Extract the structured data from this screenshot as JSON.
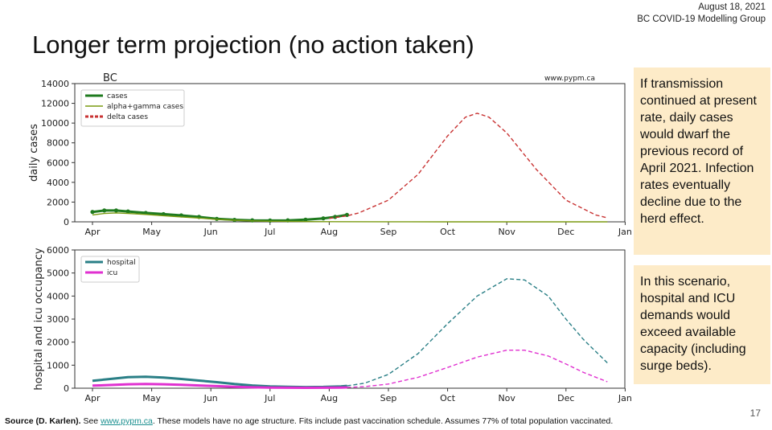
{
  "header": {
    "date": "August 18, 2021",
    "group": "BC COVID-19 Modelling Group"
  },
  "title": "Longer term projection (no action taken)",
  "notes": {
    "top": "If transmission continued at present rate, daily cases would dwarf the previous record of April 2021. Infection rates eventually decline due to the herd effect.",
    "bottom": "In this scenario, hospital and ICU demands would exceed available capacity (including surge beds)."
  },
  "footer": {
    "source": "Source (D. Karlen).",
    "see": " See ",
    "link": "www.pypm.ca",
    "rest": ". These models have no age structure. Fits include past vaccination schedule. Assumes 77% of total population vaccinated."
  },
  "page_number": "17",
  "colors": {
    "cases": "#1e7a1e",
    "alpha": "#7a9a10",
    "delta": "#c83232",
    "hospital": "#2a7f86",
    "icu": "#e030d0"
  },
  "chart_data": [
    {
      "type": "line",
      "title": "BC",
      "watermark": "www.pypm.ca",
      "xlabel": "",
      "ylabel": "daily cases",
      "x_ticks": [
        "Apr",
        "May",
        "Jun",
        "Jul",
        "Aug",
        "Sep",
        "Oct",
        "Nov",
        "Dec",
        "Jan"
      ],
      "y_ticks": [
        0,
        2000,
        4000,
        6000,
        8000,
        10000,
        12000,
        14000
      ],
      "ylim": [
        0,
        14000
      ],
      "legend": {
        "placement": "top-left",
        "entries": [
          "cases",
          "alpha+gamma cases",
          "delta cases"
        ]
      },
      "series": [
        {
          "name": "cases",
          "style": "solid+markers",
          "x": [
            0,
            0.2,
            0.4,
            0.6,
            0.9,
            1.2,
            1.5,
            1.8,
            2.1,
            2.4,
            2.7,
            3.0,
            3.3,
            3.6,
            3.9,
            4.1,
            4.3
          ],
          "values": [
            1000,
            1150,
            1150,
            1050,
            900,
            780,
            650,
            500,
            300,
            200,
            150,
            130,
            150,
            220,
            350,
            500,
            700
          ]
        },
        {
          "name": "alpha+gamma cases",
          "style": "solid",
          "x": [
            0,
            0.2,
            0.4,
            0.6,
            0.9,
            1.2,
            1.5,
            1.8,
            2.1,
            2.4,
            2.7,
            3.0,
            3.5,
            4.0,
            5,
            6,
            7,
            8,
            8.7
          ],
          "values": [
            700,
            850,
            900,
            850,
            750,
            620,
            500,
            380,
            250,
            160,
            100,
            60,
            30,
            15,
            5,
            0,
            0,
            0,
            0
          ]
        },
        {
          "name": "delta cases",
          "style": "dashed",
          "x": [
            4.0,
            4.3,
            4.5,
            5.0,
            5.5,
            6.0,
            6.3,
            6.5,
            6.7,
            7.0,
            7.5,
            8.0,
            8.5,
            8.7
          ],
          "values": [
            350,
            600,
            900,
            2200,
            4800,
            8700,
            10600,
            11000,
            10600,
            9000,
            5300,
            2200,
            700,
            400
          ]
        }
      ]
    },
    {
      "type": "line",
      "title": "",
      "xlabel": "",
      "ylabel": "hospital and icu occupancy",
      "x_ticks": [
        "Apr",
        "May",
        "Jun",
        "Jul",
        "Aug",
        "Sep",
        "Oct",
        "Nov",
        "Dec",
        "Jan"
      ],
      "y_ticks": [
        0,
        1000,
        2000,
        3000,
        4000,
        5000,
        6000
      ],
      "ylim": [
        0,
        6000
      ],
      "legend": {
        "placement": "top-left",
        "entries": [
          "hospital",
          "icu"
        ]
      },
      "series": [
        {
          "name": "hospital",
          "style": "solid",
          "x": [
            0,
            0.3,
            0.6,
            0.9,
            1.2,
            1.5,
            1.8,
            2.1,
            2.4,
            2.7,
            3.0,
            3.3,
            3.6,
            3.9,
            4.2,
            4.3
          ],
          "values": [
            320,
            400,
            480,
            500,
            460,
            400,
            330,
            260,
            180,
            120,
            80,
            60,
            50,
            55,
            80,
            100
          ]
        },
        {
          "name": "hospital projection",
          "style": "dashed",
          "x": [
            4.3,
            4.6,
            5.0,
            5.5,
            6.0,
            6.5,
            7.0,
            7.3,
            7.7,
            8.0,
            8.3,
            8.7
          ],
          "values": [
            100,
            220,
            600,
            1500,
            2800,
            4000,
            4750,
            4700,
            4000,
            3000,
            2100,
            1100
          ]
        },
        {
          "name": "icu",
          "style": "solid",
          "x": [
            0,
            0.3,
            0.6,
            0.9,
            1.2,
            1.5,
            1.8,
            2.1,
            2.4,
            2.7,
            3.0,
            3.3,
            3.6,
            3.9,
            4.2,
            4.3
          ],
          "values": [
            110,
            140,
            170,
            180,
            170,
            150,
            120,
            90,
            60,
            40,
            25,
            20,
            18,
            20,
            28,
            35
          ]
        },
        {
          "name": "icu projection",
          "style": "dashed",
          "x": [
            4.3,
            4.6,
            5.0,
            5.5,
            6.0,
            6.5,
            7.0,
            7.3,
            7.7,
            8.0,
            8.3,
            8.7
          ],
          "values": [
            35,
            70,
            180,
            470,
            900,
            1350,
            1650,
            1650,
            1400,
            1050,
            680,
            280
          ]
        }
      ]
    }
  ]
}
